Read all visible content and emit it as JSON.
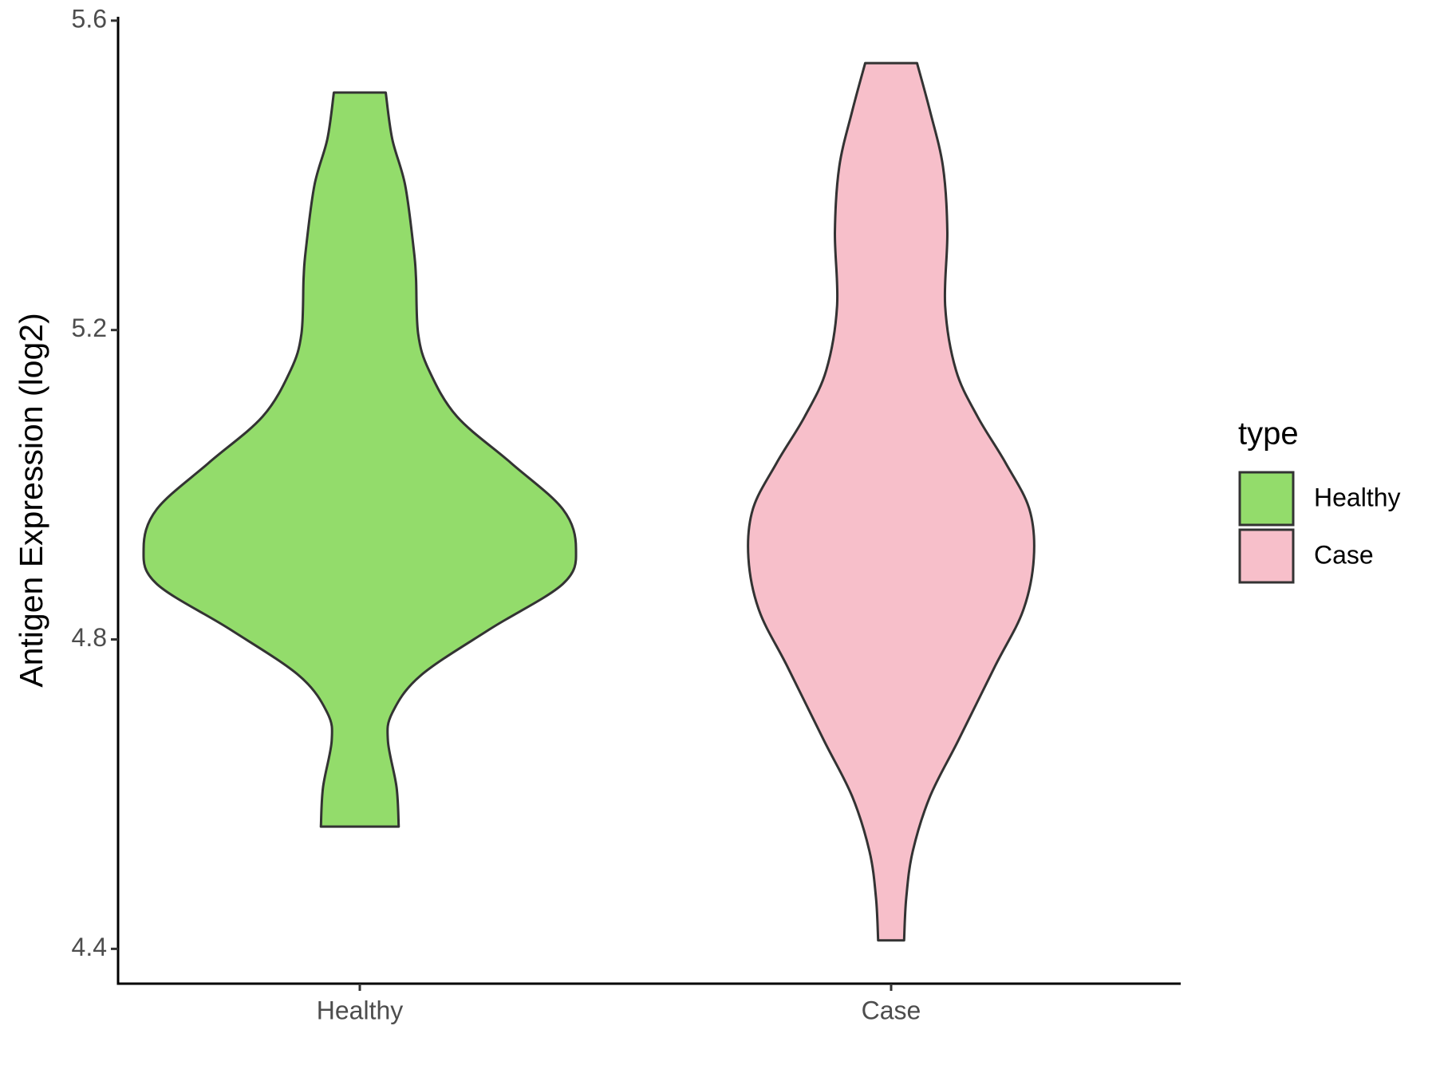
{
  "chart_data": {
    "type": "violin",
    "y_label": "Antigen Expression (log2)",
    "categories": [
      "Healthy",
      "Case"
    ],
    "legend_title": "type",
    "legend": "right",
    "ylim": [
      4.355,
      5.605
    ],
    "yticks": [
      4.4,
      4.8,
      5.2,
      5.6
    ],
    "series": [
      {
        "name": "Healthy",
        "color": "#93dc6b",
        "y": [
          5.507,
          5.447,
          5.387,
          5.303,
          5.267,
          5.195,
          5.148,
          5.088,
          5.028,
          4.968,
          4.917,
          4.872,
          4.813,
          4.753,
          4.705,
          4.669,
          4.609,
          4.558
        ],
        "density": [
          0.12,
          0.15,
          0.21,
          0.25,
          0.26,
          0.27,
          0.32,
          0.45,
          0.7,
          0.94,
          1.0,
          0.94,
          0.6,
          0.28,
          0.15,
          0.13,
          0.17,
          0.18
        ]
      },
      {
        "name": "Case",
        "color": "#f7bfca",
        "y": [
          5.545,
          5.483,
          5.411,
          5.327,
          5.231,
          5.148,
          5.088,
          5.028,
          4.968,
          4.905,
          4.837,
          4.765,
          4.669,
          4.597,
          4.526,
          4.466,
          4.411
        ],
        "density": [
          0.12,
          0.18,
          0.24,
          0.26,
          0.25,
          0.3,
          0.4,
          0.53,
          0.64,
          0.66,
          0.61,
          0.48,
          0.31,
          0.18,
          0.1,
          0.07,
          0.06
        ]
      }
    ]
  }
}
